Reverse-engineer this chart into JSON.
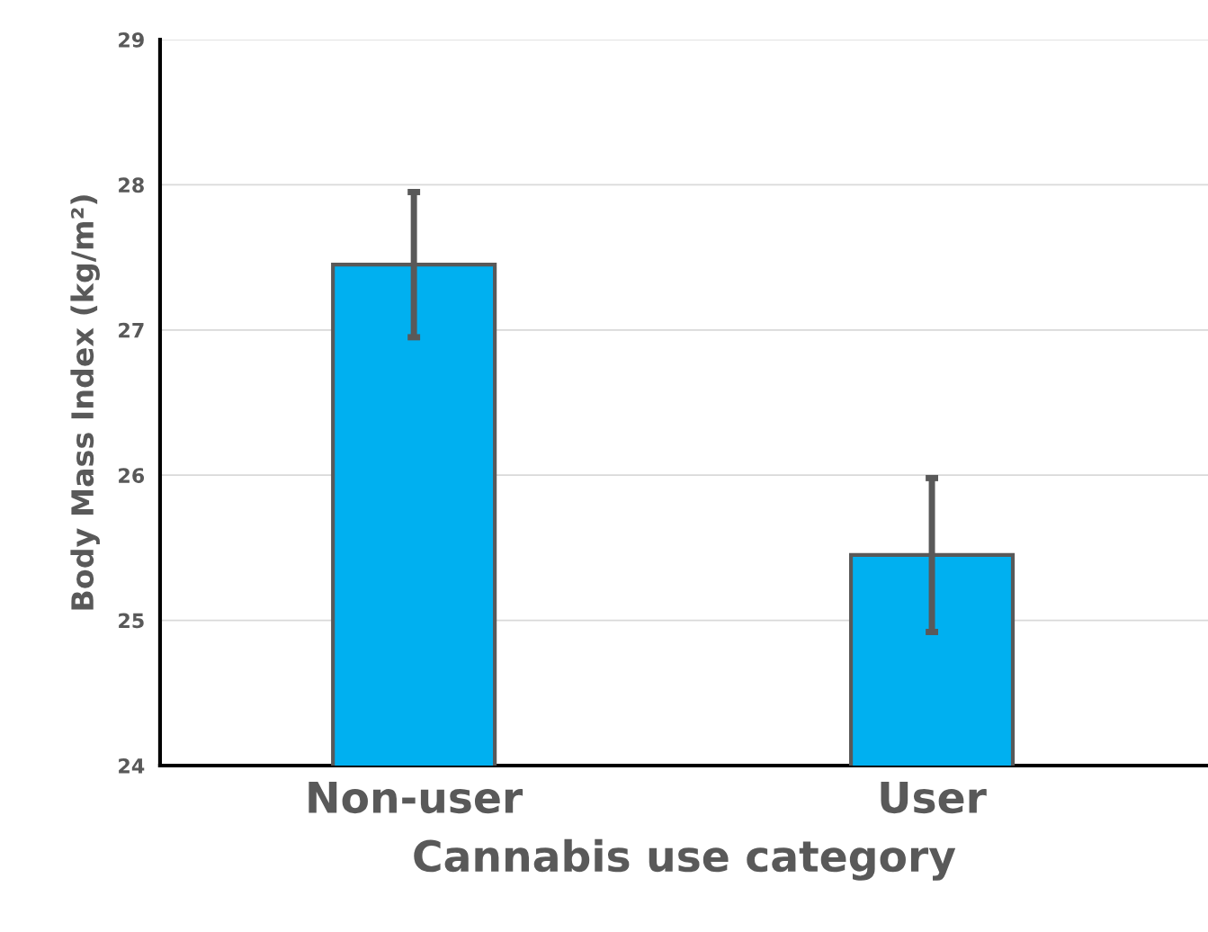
{
  "chart_data": {
    "type": "bar",
    "xlabel": "Cannabis use category",
    "ylabel": "Body Mass Index (kg/m²)",
    "categories": [
      "Non-user",
      "User"
    ],
    "series": [
      {
        "color": "#00b0f0",
        "values": [
          27.45,
          25.45
        ],
        "errors": [
          0.5,
          0.53
        ]
      }
    ],
    "ylim": [
      24,
      29
    ],
    "yticks": [
      24,
      25,
      26,
      27,
      28,
      29
    ],
    "grid": "y",
    "legend": false
  }
}
